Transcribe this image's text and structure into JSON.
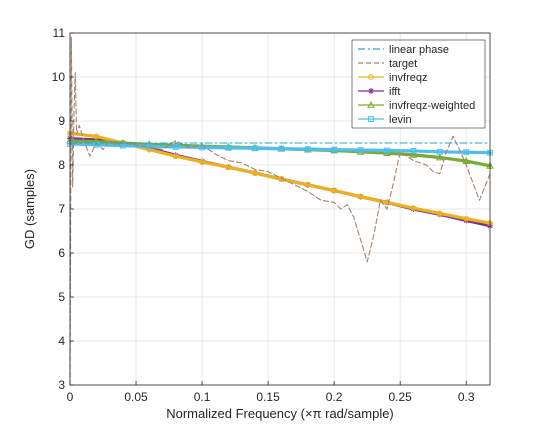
{
  "chart_data": {
    "type": "line",
    "xlabel": "Normalized Frequency (×π rad/sample)",
    "ylabel": "GD (samples)",
    "xlim": [
      0,
      0.318
    ],
    "ylim": [
      3,
      11
    ],
    "x_ticks": [
      0,
      0.05,
      0.1,
      0.15,
      0.2,
      0.25,
      0.3
    ],
    "x_tick_labels": [
      "0",
      "0.05",
      "0.1",
      "0.15",
      "0.2",
      "0.25",
      "0.3"
    ],
    "y_ticks": [
      3,
      4,
      5,
      6,
      7,
      8,
      9,
      10,
      11
    ],
    "y_tick_labels": [
      "3",
      "4",
      "5",
      "6",
      "7",
      "8",
      "9",
      "10",
      "11"
    ],
    "grid": true,
    "legend_position": "top-right",
    "series": [
      {
        "name": "linear phase",
        "color": "#2aa3c6",
        "style": "dash-dot",
        "marker": "none",
        "x": [
          0,
          0.318
        ],
        "y": [
          8.5,
          8.5
        ]
      },
      {
        "name": "target",
        "color": "#a0826d",
        "style": "dashed",
        "marker": "none",
        "x": [
          0,
          0.001,
          0.002,
          0.003,
          0.004,
          0.005,
          0.007,
          0.01,
          0.015,
          0.02,
          0.025,
          0.03,
          0.035,
          0.04,
          0.05,
          0.06,
          0.07,
          0.08,
          0.09,
          0.1,
          0.11,
          0.12,
          0.13,
          0.14,
          0.15,
          0.16,
          0.17,
          0.18,
          0.19,
          0.2,
          0.205,
          0.21,
          0.215,
          0.22,
          0.225,
          0.23,
          0.235,
          0.24,
          0.245,
          0.25,
          0.26,
          0.27,
          0.275,
          0.28,
          0.285,
          0.29,
          0.295,
          0.3,
          0.305,
          0.31,
          0.318
        ],
        "y": [
          3.0,
          10.9,
          7.5,
          9.2,
          10.1,
          8.7,
          8.9,
          8.6,
          8.2,
          8.5,
          8.35,
          8.55,
          8.45,
          8.5,
          8.45,
          8.4,
          8.35,
          8.55,
          8.4,
          8.45,
          8.25,
          8.1,
          8.05,
          7.9,
          7.85,
          7.7,
          7.55,
          7.4,
          7.2,
          7.15,
          7.0,
          7.1,
          6.8,
          6.3,
          5.8,
          6.4,
          7.2,
          7.0,
          7.6,
          8.3,
          8.1,
          8.0,
          7.85,
          7.8,
          8.3,
          8.65,
          8.35,
          8.0,
          7.6,
          7.2,
          7.8
        ]
      },
      {
        "name": "invfreqz",
        "color": "#edb120",
        "style": "solid",
        "marker": "circle",
        "x": [
          0,
          0.02,
          0.04,
          0.06,
          0.08,
          0.1,
          0.12,
          0.14,
          0.16,
          0.18,
          0.2,
          0.22,
          0.24,
          0.26,
          0.28,
          0.3,
          0.318
        ],
        "y": [
          8.72,
          8.65,
          8.5,
          8.35,
          8.2,
          8.07,
          7.95,
          7.82,
          7.68,
          7.55,
          7.42,
          7.28,
          7.15,
          7.02,
          6.9,
          6.78,
          6.68
        ]
      },
      {
        "name": "ifft",
        "color": "#7e2f8e",
        "style": "solid",
        "marker": "asterisk",
        "x": [
          0,
          0.02,
          0.04,
          0.06,
          0.08,
          0.1,
          0.12,
          0.14,
          0.16,
          0.18,
          0.2,
          0.22,
          0.24,
          0.26,
          0.28,
          0.3,
          0.318
        ],
        "y": [
          8.6,
          8.57,
          8.5,
          8.38,
          8.22,
          8.08,
          7.95,
          7.82,
          7.68,
          7.55,
          7.42,
          7.28,
          7.15,
          7.0,
          6.88,
          6.74,
          6.62
        ]
      },
      {
        "name": "invfreqz-weighted",
        "color": "#77ac30",
        "style": "solid",
        "marker": "triangle",
        "x": [
          0,
          0.02,
          0.04,
          0.06,
          0.08,
          0.1,
          0.12,
          0.14,
          0.16,
          0.18,
          0.2,
          0.22,
          0.24,
          0.26,
          0.28,
          0.3,
          0.318
        ],
        "y": [
          8.55,
          8.53,
          8.5,
          8.47,
          8.45,
          8.43,
          8.41,
          8.39,
          8.37,
          8.35,
          8.33,
          8.3,
          8.27,
          8.23,
          8.17,
          8.09,
          7.98
        ]
      },
      {
        "name": "levin",
        "color": "#4dbeee",
        "style": "solid",
        "marker": "square",
        "x": [
          0,
          0.02,
          0.04,
          0.06,
          0.08,
          0.1,
          0.12,
          0.14,
          0.16,
          0.18,
          0.2,
          0.22,
          0.24,
          0.26,
          0.28,
          0.3,
          0.318
        ],
        "y": [
          8.48,
          8.46,
          8.44,
          8.42,
          8.41,
          8.4,
          8.39,
          8.38,
          8.37,
          8.36,
          8.35,
          8.34,
          8.33,
          8.32,
          8.3,
          8.29,
          8.28
        ]
      }
    ]
  }
}
